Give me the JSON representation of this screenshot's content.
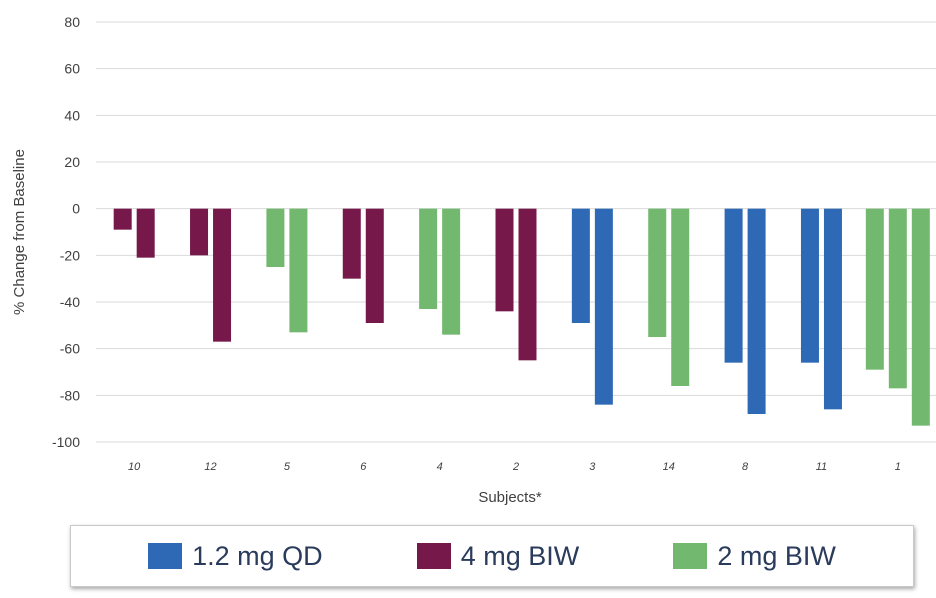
{
  "chart_data": {
    "type": "bar",
    "xlabel": "Subjects*",
    "ylabel": "% Change from Baseline",
    "ylim": [
      -100,
      80
    ],
    "yticks": [
      80,
      60,
      40,
      20,
      0,
      -20,
      -40,
      -60,
      -80,
      -100
    ],
    "grid": true,
    "legend_position": "bottom",
    "colors": {
      "1.2 mg QD": "#2d69b5",
      "4 mg BIW": "#77184a",
      "2 mg BIW": "#72b86f"
    },
    "groups": [
      {
        "subject": "10",
        "bars": [
          {
            "series": "4 mg BIW",
            "value": -9
          },
          {
            "series": "4 mg BIW",
            "value": -21
          }
        ]
      },
      {
        "subject": "12",
        "bars": [
          {
            "series": "4 mg BIW",
            "value": -20
          },
          {
            "series": "4 mg BIW",
            "value": -57
          }
        ]
      },
      {
        "subject": "5",
        "bars": [
          {
            "series": "2 mg BIW",
            "value": -25
          },
          {
            "series": "2 mg BIW",
            "value": -53
          }
        ]
      },
      {
        "subject": "6",
        "bars": [
          {
            "series": "4 mg BIW",
            "value": -30
          },
          {
            "series": "4 mg BIW",
            "value": -49
          }
        ]
      },
      {
        "subject": "4",
        "bars": [
          {
            "series": "2 mg BIW",
            "value": -43
          },
          {
            "series": "2 mg BIW",
            "value": -54
          }
        ]
      },
      {
        "subject": "2",
        "bars": [
          {
            "series": "4 mg BIW",
            "value": -44
          },
          {
            "series": "4 mg BIW",
            "value": -65
          }
        ]
      },
      {
        "subject": "3",
        "bars": [
          {
            "series": "1.2 mg QD",
            "value": -49
          },
          {
            "series": "1.2 mg QD",
            "value": -84
          }
        ]
      },
      {
        "subject": "14",
        "bars": [
          {
            "series": "2 mg BIW",
            "value": -55
          },
          {
            "series": "2 mg BIW",
            "value": -76
          }
        ]
      },
      {
        "subject": "8",
        "bars": [
          {
            "series": "1.2 mg QD",
            "value": -66
          },
          {
            "series": "1.2 mg QD",
            "value": -88
          }
        ]
      },
      {
        "subject": "11",
        "bars": [
          {
            "series": "1.2 mg QD",
            "value": -66
          },
          {
            "series": "1.2 mg QD",
            "value": -86
          }
        ]
      },
      {
        "subject": "1",
        "bars": [
          {
            "series": "2 mg BIW",
            "value": -69
          },
          {
            "series": "2 mg BIW",
            "value": -77
          },
          {
            "series": "2 mg BIW",
            "value": -93
          }
        ]
      }
    ]
  },
  "legend": [
    {
      "label": "1.2 mg QD",
      "color": "#2d69b5"
    },
    {
      "label": "4 mg BIW",
      "color": "#77184a"
    },
    {
      "label": "2 mg BIW",
      "color": "#72b86f"
    }
  ]
}
